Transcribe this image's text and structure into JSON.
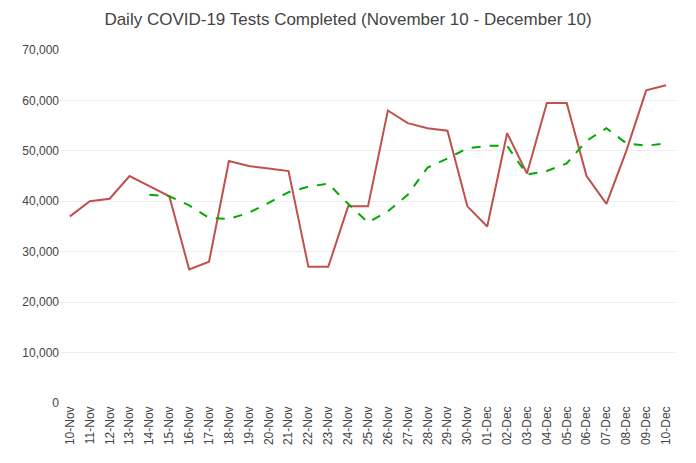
{
  "chart_data": {
    "type": "line",
    "title": "Daily COVID-19 Tests Completed (November 10 - December 10)",
    "categories": [
      "10-Nov",
      "11-Nov",
      "12-Nov",
      "13-Nov",
      "14-Nov",
      "15-Nov",
      "16-Nov",
      "17-Nov",
      "18-Nov",
      "19-Nov",
      "20-Nov",
      "21-Nov",
      "22-Nov",
      "23-Nov",
      "24-Nov",
      "25-Nov",
      "26-Nov",
      "27-Nov",
      "28-Nov",
      "29-Nov",
      "30-Nov",
      "01-Dec",
      "02-Dec",
      "03-Dec",
      "04-Dec",
      "05-Dec",
      "06-Dec",
      "07-Dec",
      "08-Dec",
      "09-Dec",
      "10-Dec"
    ],
    "series": [
      {
        "color": "#c0504d",
        "line_style": "solid",
        "values": [
          37000,
          40000,
          40500,
          45000,
          43000,
          41000,
          26500,
          28000,
          48000,
          47000,
          46500,
          46000,
          27000,
          27000,
          39000,
          39000,
          58000,
          55500,
          54500,
          54000,
          39000,
          35000,
          53500,
          45500,
          59500,
          59500,
          45000,
          39500,
          50000,
          62000,
          63000
        ]
      },
      {
        "color": "#00aa00",
        "line_style": "dashed",
        "values": [
          null,
          null,
          null,
          null,
          41300,
          41000,
          39200,
          36700,
          36500,
          37700,
          39700,
          41800,
          42900,
          43500,
          39500,
          35800,
          38000,
          41300,
          46700,
          48500,
          50500,
          51000,
          51000,
          45300,
          46000,
          47500,
          52000,
          54500,
          51500,
          51000,
          51500
        ]
      }
    ],
    "ylim": [
      0,
      70000
    ],
    "yticks": [
      0,
      {
        "value": 10000,
        "label": "10,000"
      },
      {
        "value": 20000,
        "label": "20,000"
      },
      {
        "value": 30000,
        "label": "30,000"
      },
      {
        "value": 40000,
        "label": "40,000"
      },
      {
        "value": 50000,
        "label": "50,000"
      },
      {
        "value": 60000,
        "label": "60,000"
      },
      {
        "value": 70000,
        "label": "70,000"
      }
    ],
    "grid": true
  }
}
